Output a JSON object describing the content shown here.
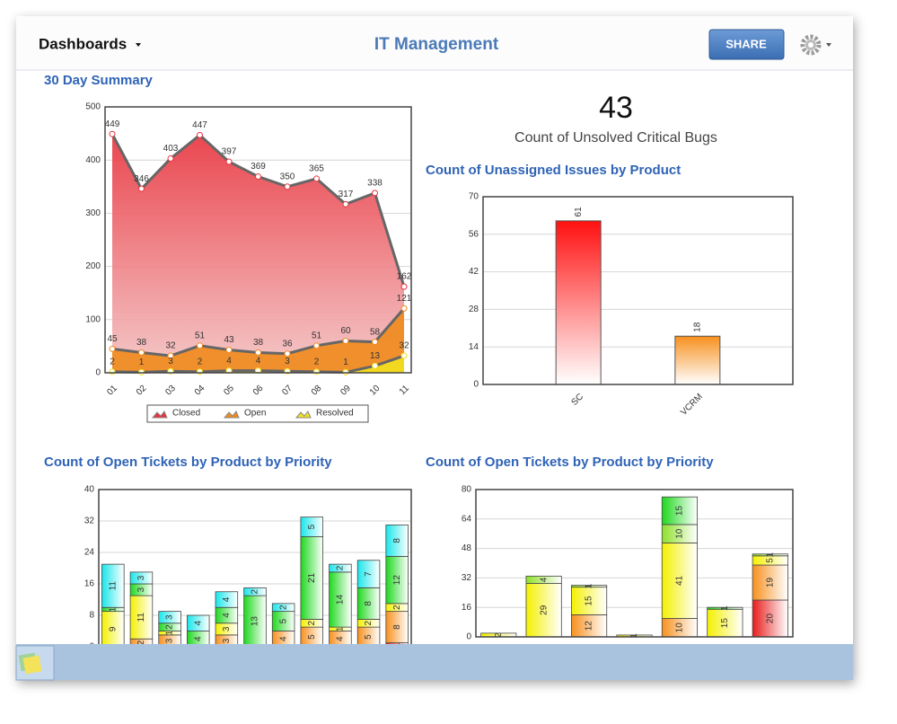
{
  "header": {
    "menu": "Dashboards",
    "title": "IT Management",
    "share": "SHARE"
  },
  "kpi": {
    "value": 43,
    "label": "Count of Unsolved Critical Bugs"
  },
  "chart_data": [
    {
      "type": "area",
      "title": "30 Day Summary",
      "categories": [
        "01",
        "02",
        "03",
        "04",
        "05",
        "06",
        "07",
        "08",
        "09",
        "10",
        "11"
      ],
      "series": [
        {
          "name": "Closed",
          "color": "#e8323c",
          "values": [
            449,
            346,
            403,
            447,
            397,
            369,
            350,
            365,
            317,
            338,
            162
          ]
        },
        {
          "name": "Open",
          "color": "#f08a1c",
          "values": [
            45,
            38,
            32,
            51,
            43,
            38,
            36,
            51,
            60,
            58,
            121
          ]
        },
        {
          "name": "Resolved",
          "color": "#f2e01c",
          "values": [
            2,
            1,
            3,
            2,
            4,
            4,
            3,
            2,
            1,
            13,
            32
          ]
        }
      ],
      "ylim": [
        0,
        500
      ],
      "yticks": [
        0,
        100,
        200,
        300,
        400,
        500
      ],
      "grid": true,
      "legend": "bottom"
    },
    {
      "type": "bar",
      "title": "Count of Unassigned Issues by Product",
      "categories": [
        "SC",
        "VCRM"
      ],
      "values": [
        61,
        18
      ],
      "colors": [
        "#ff1010",
        "#f7901e"
      ],
      "ylim": [
        0,
        70
      ],
      "yticks": [
        0,
        14,
        28,
        42,
        56,
        70
      ],
      "grid": true
    },
    {
      "type": "stacked",
      "title": "Count of Open Tickets by Product by Priority",
      "series": [
        {
          "color": "#e81c1c",
          "values": [
            0,
            0,
            0,
            0,
            0,
            0,
            0,
            0,
            0,
            0,
            1
          ]
        },
        {
          "color": "#f7901e",
          "values": [
            0,
            2,
            3,
            0,
            3,
            0,
            4,
            5,
            4,
            5,
            8
          ]
        },
        {
          "color": "#f4f000",
          "values": [
            9,
            11,
            1,
            0,
            3,
            0,
            0,
            2,
            1,
            2,
            2
          ]
        },
        {
          "color": "#1ed81e",
          "values": [
            1,
            3,
            2,
            4,
            4,
            13,
            5,
            21,
            14,
            8,
            12
          ]
        },
        {
          "color": "#19e6ea",
          "values": [
            11,
            3,
            3,
            4,
            4,
            2,
            2,
            5,
            2,
            7,
            8
          ]
        }
      ],
      "ylim": [
        0,
        40
      ],
      "yticks": [
        0,
        8,
        16,
        24,
        32,
        40
      ],
      "grid": true
    },
    {
      "type": "stacked",
      "title": "Count of Open Tickets by Product by Priority",
      "series": [
        {
          "color": "#e81c1c",
          "values": [
            0,
            0,
            0,
            0,
            0,
            0,
            20
          ]
        },
        {
          "color": "#f7901e",
          "values": [
            0,
            0,
            12,
            0,
            10,
            0,
            19
          ]
        },
        {
          "color": "#f4f000",
          "values": [
            2,
            29,
            15,
            1,
            41,
            15,
            5
          ]
        },
        {
          "color": "#8ee02a",
          "values": [
            0,
            4,
            1,
            0,
            10,
            0,
            1
          ]
        },
        {
          "color": "#1ed81e",
          "values": [
            0,
            0,
            0,
            0,
            15,
            1,
            0
          ]
        }
      ],
      "ylim": [
        0,
        80
      ],
      "yticks": [
        0,
        16,
        32,
        48,
        64,
        80
      ],
      "grid": true
    }
  ]
}
